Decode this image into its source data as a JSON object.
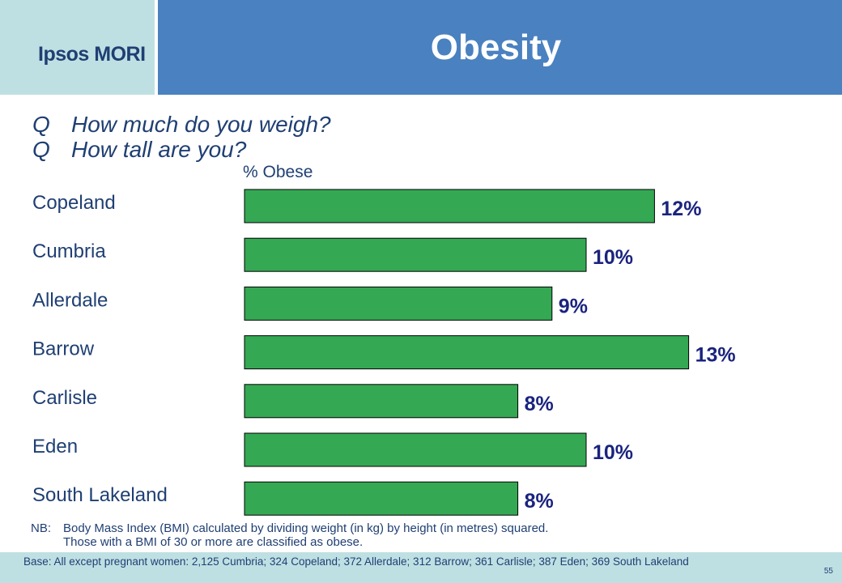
{
  "header": {
    "logo": "Ipsos MORI",
    "title": "Obesity"
  },
  "questions": [
    {
      "prefix": "Q",
      "text": "How much do you weigh?"
    },
    {
      "prefix": "Q",
      "text": "How tall are you?"
    }
  ],
  "chart_data": {
    "type": "bar",
    "orientation": "horizontal",
    "xlabel": "% Obese",
    "categories": [
      "Copeland",
      "Cumbria",
      "Allerdale",
      "Barrow",
      "Carlisle",
      "Eden",
      "South Lakeland"
    ],
    "values": [
      12,
      10,
      9,
      13,
      8,
      10,
      8
    ],
    "value_labels": [
      "12%",
      "10%",
      "9%",
      "13%",
      "8%",
      "10%",
      "8%"
    ],
    "bar_color": "#34a853",
    "xlim": [
      0,
      13
    ],
    "grid": false,
    "legend": false
  },
  "note": {
    "prefix": "NB:",
    "lines": [
      "Body Mass Index (BMI) calculated by dividing weight (in kg) by height (in metres) squared.",
      "Those with a BMI of 30 or more are classified as obese."
    ]
  },
  "footer": {
    "base": "Base: All except pregnant women: 2,125 Cumbria; 324 Copeland; 372 Allerdale; 312 Barrow; 361 Carlisle; 387 Eden; 369 South Lakeland",
    "page_number": "55"
  },
  "colors": {
    "header_blue": "#4a81c0",
    "header_teal": "#bfe0e3",
    "text_navy": "#1f3f73"
  }
}
